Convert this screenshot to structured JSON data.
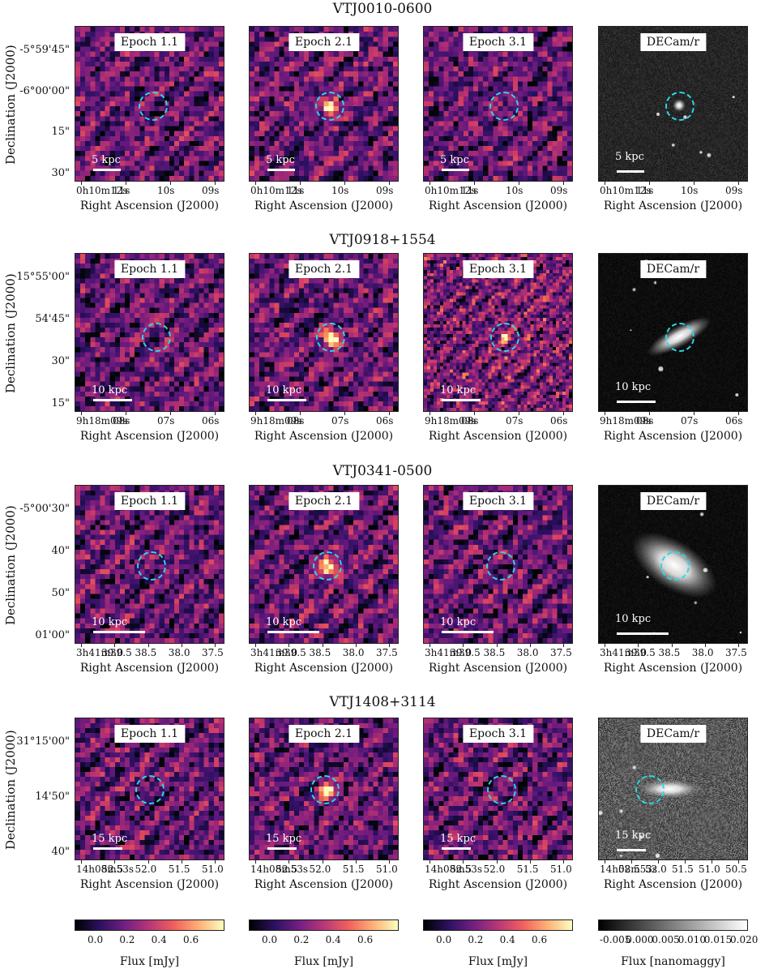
{
  "rows": [
    {
      "title": "VTJ0010-0600",
      "ylabel": "Declination (J2000)",
      "yticks": [
        "-5°59'45\"",
        "-6°00'00\"",
        "15\"",
        "30\""
      ],
      "xticks_radio": [
        "0h10m12s",
        "11s",
        "10s",
        "09s"
      ],
      "xticks_opt": [
        "0h10m12s",
        "11s",
        "10s",
        "09s"
      ],
      "xlabel": "Right Ascension (J2000)",
      "scale": "5 kpc",
      "panels": [
        "Epoch 1.1",
        "Epoch 2.1",
        "Epoch 3.1",
        "DECam/r"
      ]
    },
    {
      "title": "VTJ0918+1554",
      "ylabel": "Declination (J2000)",
      "yticks": [
        "15°55'00\"",
        "54'45\"",
        "30\"",
        "15\""
      ],
      "xticks_radio": [
        "9h18m09s",
        "08s",
        "07s",
        "06s"
      ],
      "xticks_opt": [
        "9h18m09s",
        "08s",
        "07s",
        "06s"
      ],
      "xlabel": "Right Ascension (J2000)",
      "scale": "10 kpc",
      "panels": [
        "Epoch 1.1",
        "Epoch 2.1",
        "Epoch 3.1",
        "DECam/r"
      ]
    },
    {
      "title": "VTJ0341-0500",
      "ylabel": "Declination (J2000)",
      "yticks": [
        "-5°00'30\"",
        "40\"",
        "50\"",
        "01'00\""
      ],
      "xticks_radio": [
        "3h41m39.5",
        "39.0",
        "38.5",
        "38.0",
        "37.5"
      ],
      "xticks_opt": [
        "3h41m39.5",
        "39.0",
        "38.5",
        "38.0",
        "37.5"
      ],
      "xlabel": "Right Ascension (J2000)",
      "scale": "10 kpc",
      "panels": [
        "Epoch 1.1",
        "Epoch 2.1",
        "Epoch 3.1",
        "DECam/r"
      ]
    },
    {
      "title": "VTJ1408+3114",
      "ylabel": "Declination (J2000)",
      "yticks": [
        "31°15'00\"",
        "14'50\"",
        "40\""
      ],
      "xticks_radio": [
        "14h08m53s",
        "52.5",
        "52.0",
        "51.5",
        "51.0"
      ],
      "xticks_opt": [
        "14h08m53s",
        "52.5",
        "52.0",
        "51.5",
        "51.0",
        "50.5"
      ],
      "xlabel": "Right Ascension (J2000)",
      "scale": "15 kpc",
      "panels": [
        "Epoch 1.1",
        "Epoch 2.1",
        "Epoch 3.1",
        "DECam/r"
      ]
    }
  ],
  "colorbars": [
    {
      "ticks": [
        "0.0",
        "0.2",
        "0.4",
        "0.6"
      ],
      "label": "Flux [mJy]",
      "type": "magma"
    },
    {
      "ticks": [
        "0.0",
        "0.2",
        "0.4",
        "0.6"
      ],
      "label": "Flux [mJy]",
      "type": "magma"
    },
    {
      "ticks": [
        "0.0",
        "0.2",
        "0.4",
        "0.6"
      ],
      "label": "Flux [mJy]",
      "type": "magma"
    },
    {
      "ticks": [
        "-0.005",
        "0.000",
        "0.005",
        "0.010",
        "0.015",
        "0.020"
      ],
      "label": "Flux [nanomaggy]",
      "type": "gray"
    }
  ],
  "colors": {
    "circle": "#2ad8e6"
  }
}
